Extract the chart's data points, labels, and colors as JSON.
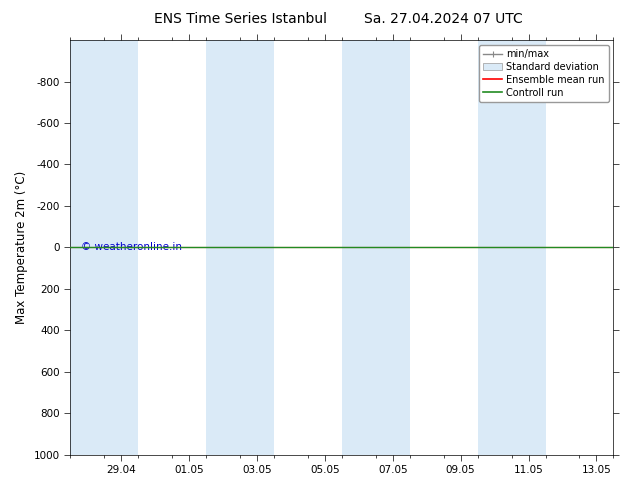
{
  "title": "ENS Time Series Istanbul",
  "title2": "Sa. 27.04.2024 07 UTC",
  "ylabel": "Max Temperature 2m (°C)",
  "watermark": "© weatheronline.in",
  "xlim_start": 0,
  "xlim_end": 16,
  "ylim_bottom": 1000,
  "ylim_top": -1000,
  "yticks": [
    -800,
    -600,
    -400,
    -200,
    0,
    200,
    400,
    600,
    800,
    1000
  ],
  "xtick_labels": [
    "29.04",
    "01.05",
    "03.05",
    "05.05",
    "07.05",
    "09.05",
    "11.05",
    "13.05"
  ],
  "xtick_positions": [
    1.5,
    3.5,
    5.5,
    7.5,
    9.5,
    11.5,
    13.5,
    15.5
  ],
  "background_color": "#ffffff",
  "shaded_columns": [
    [
      0,
      2
    ],
    [
      4,
      6
    ],
    [
      8,
      10
    ],
    [
      12,
      14
    ]
  ],
  "shaded_color": "#daeaf7",
  "control_run_y": 0,
  "ensemble_mean_y": 0,
  "legend_entries": [
    "min/max",
    "Standard deviation",
    "Ensemble mean run",
    "Controll run"
  ],
  "legend_colors_line": [
    "#888888",
    "#c5dff0",
    "#ff0000",
    "#228B22"
  ],
  "axis_color": "#000000",
  "tick_label_fontsize": 7.5,
  "title_fontsize": 10,
  "ylabel_fontsize": 8.5,
  "watermark_color": "#0000cc",
  "watermark_fontsize": 7.5,
  "legend_fontsize": 7
}
